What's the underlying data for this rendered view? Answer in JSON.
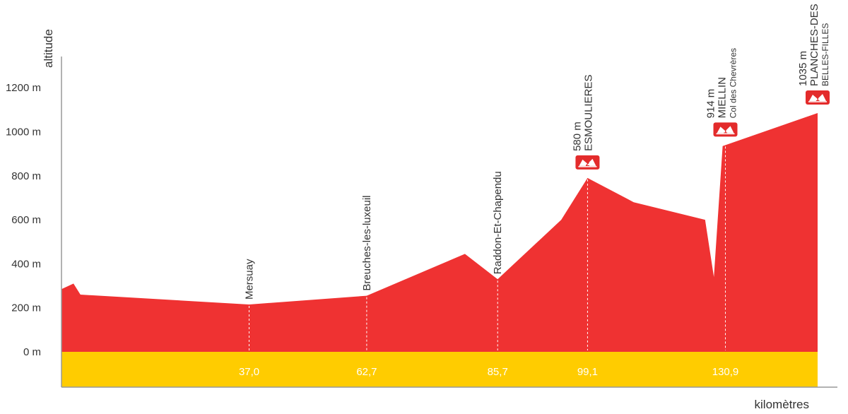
{
  "chart_data": {
    "type": "area",
    "title": "",
    "ylabel": "altitude",
    "xlabel": "kilomètres",
    "ylim": [
      0,
      1300
    ],
    "xlim": [
      0,
      164
    ],
    "y_ticks": [
      "0 m",
      "200 m",
      "400 m",
      "600 m",
      "800 m",
      "1000 m",
      "1200 m"
    ],
    "y_tick_values": [
      0,
      200,
      400,
      600,
      800,
      1000,
      1200
    ],
    "profile": {
      "x": [
        0,
        2.6,
        4.1,
        40.7,
        66.2,
        87.5,
        94.6,
        108.4,
        114.1,
        124.1,
        139.6,
        141.5,
        143.4,
        164
      ],
      "y": [
        285,
        310,
        260,
        215,
        255,
        445,
        330,
        600,
        790,
        680,
        600,
        340,
        935,
        1085
      ]
    },
    "colors": {
      "profile": "#ef3232",
      "base_band": "#ffcc00",
      "axis": "#999999",
      "marker_line": "#ffffff",
      "badge": "#e32b2b"
    },
    "places": [
      {
        "name": "Mersuay",
        "km": 40.7,
        "km_label": "37,0"
      },
      {
        "name": "Breuches-les-luxeuil",
        "km": 66.2,
        "km_label": "62,7"
      },
      {
        "name": "Raddon-Et-Chapendu",
        "km": 94.6,
        "km_label": "85,7"
      }
    ],
    "climbs": [
      {
        "altitude": "580 m",
        "name": "ESMOULIERES",
        "sub": "",
        "category": "2",
        "km": 114.1,
        "km_label": "99,1"
      },
      {
        "altitude": "914 m",
        "name": "MIELLIN",
        "sub": "Col des Chevrères",
        "category": "1",
        "km": 144.0,
        "km_label": "130,9"
      },
      {
        "altitude": "1035 m",
        "name": "PLANCHES-DES",
        "sub": "BELLES-FILLES",
        "category": "1",
        "km": 164,
        "km_label": ""
      }
    ]
  }
}
